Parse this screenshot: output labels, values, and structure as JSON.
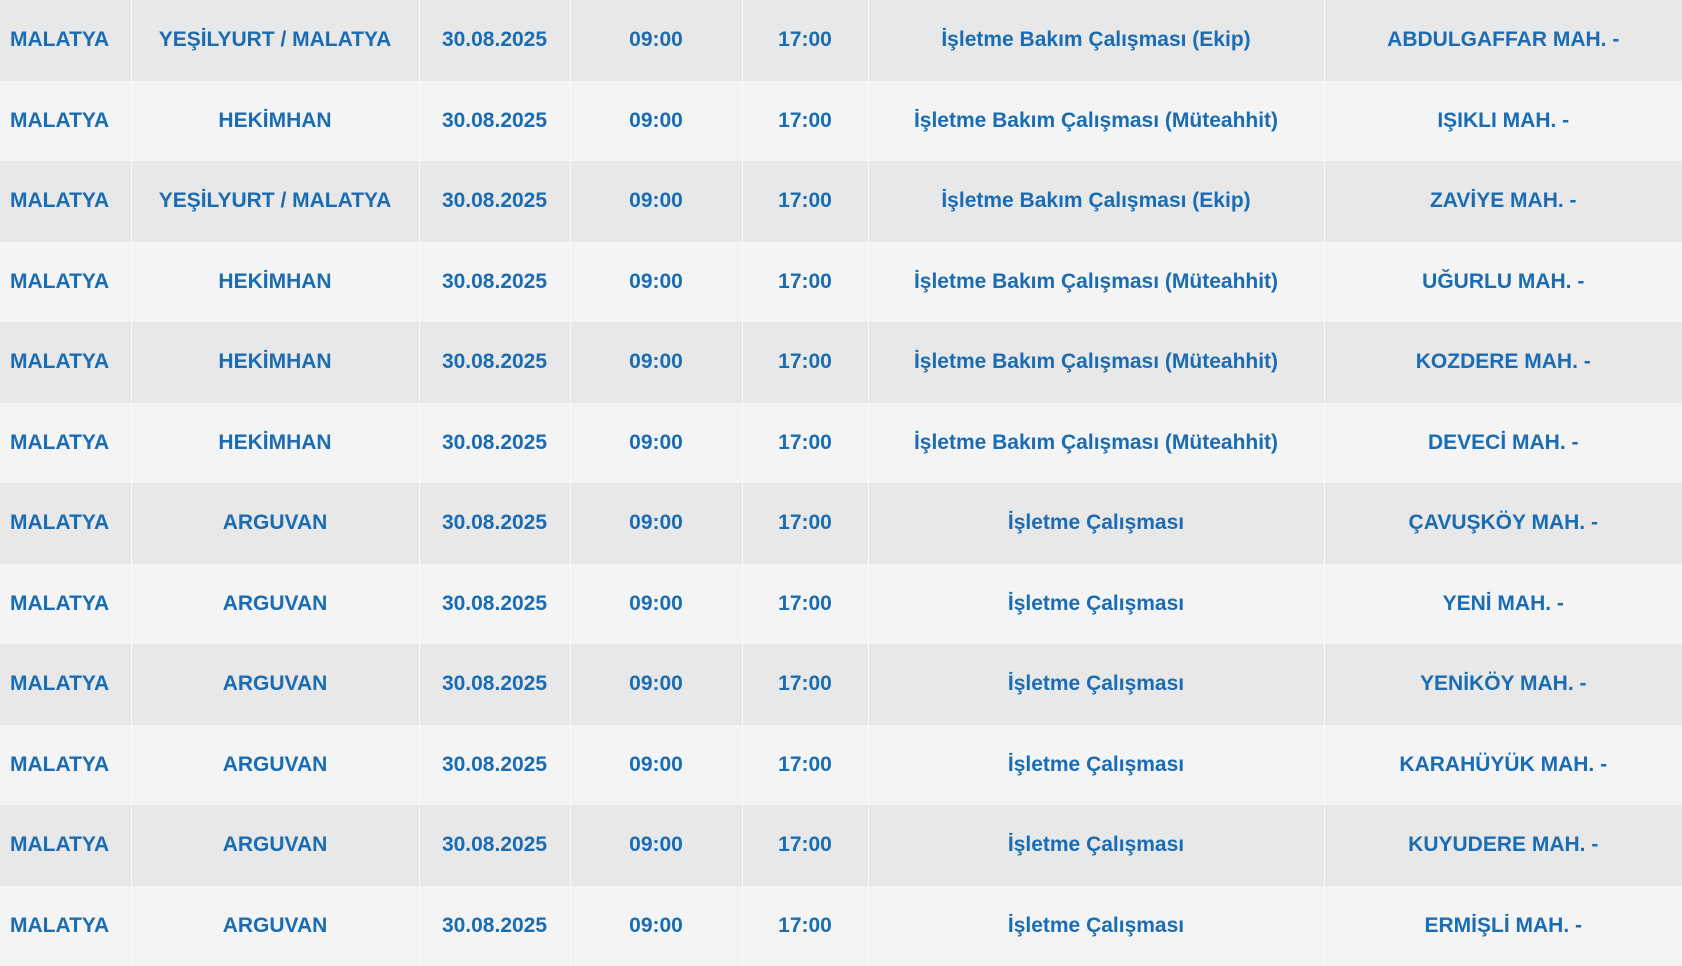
{
  "colors": {
    "text": "#1a6cb3",
    "row_odd": "#e8e8e8",
    "row_even": "#f4f4f4"
  },
  "rows": [
    {
      "il": "MALATYA",
      "ilce": "YEŞİLYURT / MALATYA",
      "tarih": "30.08.2025",
      "baslangic": "09:00",
      "bitis": "17:00",
      "neden": "İşletme Bakım Çalışması (Ekip)",
      "mahalle": "ABDULGAFFAR MAH. -"
    },
    {
      "il": "MALATYA",
      "ilce": "HEKİMHAN",
      "tarih": "30.08.2025",
      "baslangic": "09:00",
      "bitis": "17:00",
      "neden": "İşletme Bakım Çalışması (Müteahhit)",
      "mahalle": "IŞIKLI MAH. -"
    },
    {
      "il": "MALATYA",
      "ilce": "YEŞİLYURT / MALATYA",
      "tarih": "30.08.2025",
      "baslangic": "09:00",
      "bitis": "17:00",
      "neden": "İşletme Bakım Çalışması (Ekip)",
      "mahalle": "ZAVİYE MAH. -"
    },
    {
      "il": "MALATYA",
      "ilce": "HEKİMHAN",
      "tarih": "30.08.2025",
      "baslangic": "09:00",
      "bitis": "17:00",
      "neden": "İşletme Bakım Çalışması (Müteahhit)",
      "mahalle": "UĞURLU MAH. -"
    },
    {
      "il": "MALATYA",
      "ilce": "HEKİMHAN",
      "tarih": "30.08.2025",
      "baslangic": "09:00",
      "bitis": "17:00",
      "neden": "İşletme Bakım Çalışması (Müteahhit)",
      "mahalle": "KOZDERE MAH. -"
    },
    {
      "il": "MALATYA",
      "ilce": "HEKİMHAN",
      "tarih": "30.08.2025",
      "baslangic": "09:00",
      "bitis": "17:00",
      "neden": "İşletme Bakım Çalışması (Müteahhit)",
      "mahalle": "DEVECİ MAH. -"
    },
    {
      "il": "MALATYA",
      "ilce": "ARGUVAN",
      "tarih": "30.08.2025",
      "baslangic": "09:00",
      "bitis": "17:00",
      "neden": "İşletme Çalışması",
      "mahalle": "ÇAVUŞKÖY MAH. -"
    },
    {
      "il": "MALATYA",
      "ilce": "ARGUVAN",
      "tarih": "30.08.2025",
      "baslangic": "09:00",
      "bitis": "17:00",
      "neden": "İşletme Çalışması",
      "mahalle": "YENİ MAH. -"
    },
    {
      "il": "MALATYA",
      "ilce": "ARGUVAN",
      "tarih": "30.08.2025",
      "baslangic": "09:00",
      "bitis": "17:00",
      "neden": "İşletme Çalışması",
      "mahalle": "YENİKÖY MAH. -"
    },
    {
      "il": "MALATYA",
      "ilce": "ARGUVAN",
      "tarih": "30.08.2025",
      "baslangic": "09:00",
      "bitis": "17:00",
      "neden": "İşletme Çalışması",
      "mahalle": "KARAHÜYÜK MAH. -"
    },
    {
      "il": "MALATYA",
      "ilce": "ARGUVAN",
      "tarih": "30.08.2025",
      "baslangic": "09:00",
      "bitis": "17:00",
      "neden": "İşletme Çalışması",
      "mahalle": "KUYUDERE MAH. -"
    },
    {
      "il": "MALATYA",
      "ilce": "ARGUVAN",
      "tarih": "30.08.2025",
      "baslangic": "09:00",
      "bitis": "17:00",
      "neden": "İşletme Çalışması",
      "mahalle": "ERMİŞLİ MAH. -"
    }
  ]
}
